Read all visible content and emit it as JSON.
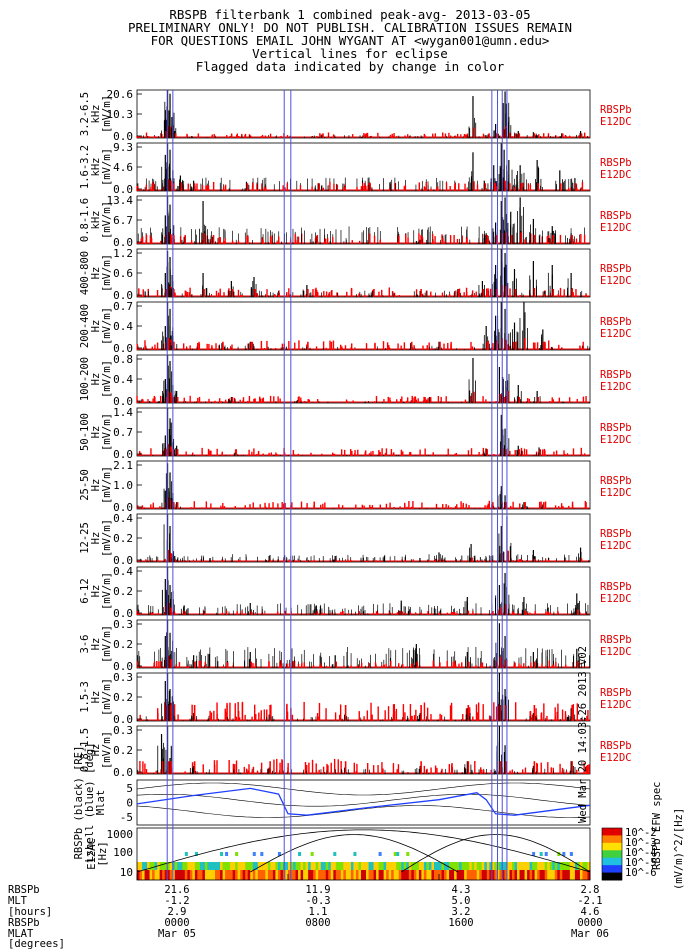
{
  "header": {
    "lines": [
      "RBSPB filterbank 1 combined peak-avg- 2013-03-05",
      "PRELIMINARY ONLY! DO NOT PUBLISH. CALIBRATION ISSUES REMAIN",
      "FOR QUESTIONS EMAIL JOHN WYGANT AT <wygan001@umn.edu>",
      "Vertical lines for eclipse",
      "Flagged data indicated by change in color"
    ]
  },
  "colors": {
    "peak": "#000000",
    "avg": "#ff0000",
    "eclipse": "#5050e0",
    "mlat": "#2040ff"
  },
  "chart_data": {
    "type": "line",
    "x_unit": "hours",
    "xlim": [
      0,
      24
    ],
    "eclipse_hours": [
      1.6,
      1.9,
      7.8,
      8.15,
      18.8,
      19.1,
      19.35,
      19.6
    ],
    "side_label": [
      "RBSPb",
      "E12DC"
    ],
    "panels": [
      {
        "band": "3.2-6.5",
        "unit": "kHz",
        "ylabel": "[mV/m]",
        "ticks": [
          "20.6",
          "10.3",
          "0.0"
        ],
        "ymax": 20.6,
        "peaks": [
          [
            1.5,
            12
          ],
          [
            1.62,
            20.5
          ],
          [
            1.75,
            19
          ],
          [
            1.85,
            9
          ],
          [
            2.0,
            3
          ],
          [
            9.8,
            1.2
          ],
          [
            12.1,
            0.6
          ],
          [
            17.8,
            18
          ],
          [
            18.6,
            1.5
          ],
          [
            19.0,
            6
          ],
          [
            19.4,
            15
          ],
          [
            19.5,
            20
          ],
          [
            19.7,
            9
          ],
          [
            20.2,
            3
          ],
          [
            21.0,
            2.5
          ],
          [
            22.5,
            2
          ],
          [
            23.5,
            3
          ]
        ],
        "base": 0.4,
        "red": 2.0
      },
      {
        "band": "1.6-3.2",
        "unit": "kHz",
        "ylabel": "[mV/m]",
        "ticks": [
          "9.3",
          "4.6",
          "0.0"
        ],
        "ymax": 9.3,
        "peaks": [
          [
            1.5,
            7
          ],
          [
            1.62,
            9.2
          ],
          [
            1.75,
            8
          ],
          [
            1.9,
            4
          ],
          [
            2.3,
            3
          ],
          [
            3.0,
            2
          ],
          [
            5.8,
            1.8
          ],
          [
            9.6,
            1.5
          ],
          [
            12.3,
            1.2
          ],
          [
            17.8,
            7.5
          ],
          [
            18.4,
            2
          ],
          [
            18.9,
            5
          ],
          [
            19.3,
            9.2
          ],
          [
            19.45,
            8
          ],
          [
            19.7,
            6
          ],
          [
            20.3,
            5
          ],
          [
            21.2,
            6
          ],
          [
            22.4,
            4
          ],
          [
            23.2,
            2.5
          ]
        ],
        "base": 0.8,
        "red": 1.5
      },
      {
        "band": "0.8-1.6",
        "unit": "kHz",
        "ylabel": "[mV/m]",
        "ticks": [
          "13.4",
          "6.7",
          "0.0"
        ],
        "ymax": 13.4,
        "peaks": [
          [
            1.5,
            8
          ],
          [
            1.62,
            13.3
          ],
          [
            1.75,
            11
          ],
          [
            1.9,
            3
          ],
          [
            2.5,
            2
          ],
          [
            3.5,
            12
          ],
          [
            4.0,
            2
          ],
          [
            9.5,
            1.5
          ],
          [
            15.0,
            1.2
          ],
          [
            18.5,
            3
          ],
          [
            19.0,
            6
          ],
          [
            19.3,
            12
          ],
          [
            19.5,
            13
          ],
          [
            19.8,
            9
          ],
          [
            20.3,
            13
          ],
          [
            21.0,
            7
          ],
          [
            22.0,
            5
          ],
          [
            23.0,
            3
          ]
        ],
        "base": 1.5,
        "red": 2.5
      },
      {
        "band": "400-800",
        "unit": "Hz",
        "ylabel": "[mV/m]",
        "ticks": [
          "1.2",
          "0.6",
          "0.0"
        ],
        "ymax": 1.2,
        "peaks": [
          [
            1.5,
            0.6
          ],
          [
            1.62,
            1.15
          ],
          [
            1.75,
            1.0
          ],
          [
            1.9,
            0.4
          ],
          [
            3.5,
            0.6
          ],
          [
            5.0,
            0.4
          ],
          [
            6.2,
            0.5
          ],
          [
            9.0,
            0.3
          ],
          [
            12.5,
            0.15
          ],
          [
            15.0,
            0.15
          ],
          [
            17.0,
            0.2
          ],
          [
            18.3,
            0.4
          ],
          [
            19.0,
            0.8
          ],
          [
            19.3,
            1.2
          ],
          [
            19.5,
            1.1
          ],
          [
            20.0,
            0.7
          ],
          [
            21.0,
            0.9
          ],
          [
            22.0,
            0.8
          ],
          [
            23.0,
            0.6
          ]
        ],
        "base": 0.05,
        "red": 0.2
      },
      {
        "band": "200-400",
        "unit": "Hz",
        "ylabel": "[mV/m]",
        "ticks": [
          "0.7",
          "0.4",
          "0.0"
        ],
        "ymax": 0.7,
        "peaks": [
          [
            1.5,
            0.35
          ],
          [
            1.62,
            0.7
          ],
          [
            1.75,
            0.6
          ],
          [
            1.9,
            0.2
          ],
          [
            4.5,
            0.1
          ],
          [
            6.0,
            0.12
          ],
          [
            9.0,
            0.05
          ],
          [
            14.5,
            0.1
          ],
          [
            16.0,
            0.12
          ],
          [
            18.5,
            0.35
          ],
          [
            19.0,
            0.5
          ],
          [
            19.3,
            0.7
          ],
          [
            19.5,
            0.6
          ],
          [
            20.0,
            0.4
          ],
          [
            20.5,
            0.7
          ],
          [
            21.5,
            0.3
          ]
        ],
        "base": 0.02,
        "red": 0.12
      },
      {
        "band": "100-200",
        "unit": "Hz",
        "ylabel": "[mV/m]",
        "ticks": [
          "0.8",
          "0.4",
          "0.0"
        ],
        "ymax": 0.8,
        "peaks": [
          [
            1.5,
            0.4
          ],
          [
            1.62,
            0.8
          ],
          [
            1.75,
            0.7
          ],
          [
            1.9,
            0.3
          ],
          [
            2.1,
            0.2
          ],
          [
            5.0,
            0.1
          ],
          [
            8.5,
            0.05
          ],
          [
            15.5,
            0.1
          ],
          [
            17.8,
            0.75
          ],
          [
            19.2,
            0.6
          ],
          [
            19.4,
            0.4
          ],
          [
            19.6,
            0.8
          ],
          [
            20.2,
            0.3
          ],
          [
            21.2,
            0.2
          ]
        ],
        "base": 0.01,
        "red": 0.1
      },
      {
        "band": "50-100",
        "unit": "Hz",
        "ylabel": "[mV/m]",
        "ticks": [
          "1.4",
          "0.7",
          "0.0"
        ],
        "ymax": 1.4,
        "peaks": [
          [
            1.5,
            0.6
          ],
          [
            1.62,
            1.4
          ],
          [
            1.75,
            1.1
          ],
          [
            1.9,
            0.4
          ],
          [
            2.1,
            0.3
          ],
          [
            5.2,
            0.1
          ],
          [
            18.5,
            0.2
          ],
          [
            19.3,
            1.2
          ],
          [
            19.5,
            0.8
          ],
          [
            20.2,
            0.3
          ],
          [
            21.3,
            0.25
          ]
        ],
        "base": 0.01,
        "red": 0.2
      },
      {
        "band": "25-50",
        "unit": "Hz",
        "ylabel": "[mV/m]",
        "ticks": [
          "2.1",
          "1.0",
          "0.0"
        ],
        "ymax": 2.1,
        "peaks": [
          [
            1.5,
            0.8
          ],
          [
            1.62,
            2.0
          ],
          [
            1.75,
            1.6
          ],
          [
            1.9,
            0.7
          ],
          [
            2.1,
            0.3
          ],
          [
            18.8,
            0.2
          ],
          [
            19.3,
            1.0
          ],
          [
            19.5,
            0.6
          ],
          [
            20.5,
            0.3
          ],
          [
            21.5,
            0.2
          ]
        ],
        "base": 0.01,
        "red": 0.3
      },
      {
        "band": "12-25",
        "unit": "Hz",
        "ylabel": "[mV/m]",
        "ticks": [
          "0.4",
          "0.2",
          "0.0"
        ],
        "ymax": 0.4,
        "peaks": [
          [
            1.62,
            0.4
          ],
          [
            1.75,
            0.3
          ],
          [
            2.0,
            0.05
          ],
          [
            7.0,
            0.05
          ],
          [
            10.5,
            0.05
          ],
          [
            16.0,
            0.08
          ],
          [
            17.7,
            0.15
          ],
          [
            19.3,
            0.3
          ],
          [
            19.6,
            0.38
          ],
          [
            21.0,
            0.1
          ],
          [
            23.5,
            0.12
          ]
        ],
        "base": 0.02,
        "red": 0.02
      },
      {
        "band": "6-12",
        "unit": "Hz",
        "ylabel": "[mV/m]",
        "ticks": [
          "0.4",
          "0.2",
          "0.0"
        ],
        "ymax": 0.4,
        "peaks": [
          [
            1.5,
            0.3
          ],
          [
            1.62,
            0.4
          ],
          [
            1.75,
            0.25
          ],
          [
            2.5,
            0.08
          ],
          [
            6.0,
            0.1
          ],
          [
            9.5,
            0.08
          ],
          [
            14.0,
            0.12
          ],
          [
            17.5,
            0.15
          ],
          [
            19.2,
            0.25
          ],
          [
            19.5,
            0.35
          ],
          [
            20.5,
            0.15
          ],
          [
            23.3,
            0.18
          ]
        ],
        "base": 0.03,
        "red": 0.03
      },
      {
        "band": "3-6",
        "unit": "Hz",
        "ylabel": "[mV/m]",
        "ticks": [
          "0.3",
          "0.2",
          "0.0"
        ],
        "ymax": 0.3,
        "peaks": [
          [
            1.5,
            0.2
          ],
          [
            1.62,
            0.3
          ],
          [
            1.75,
            0.22
          ],
          [
            3.0,
            0.08
          ],
          [
            6.0,
            0.1
          ],
          [
            10.5,
            0.08
          ],
          [
            14.8,
            0.15
          ],
          [
            17.5,
            0.1
          ],
          [
            19.2,
            0.28
          ],
          [
            19.5,
            0.2
          ],
          [
            21.0,
            0.1
          ],
          [
            23.3,
            0.12
          ]
        ],
        "base": 0.04,
        "red": 0.04
      },
      {
        "band": "1.5-3",
        "unit": "Hz",
        "ylabel": "[mV/m]",
        "ticks": [
          "0.3",
          "0.2",
          "0.0"
        ],
        "ymax": 0.3,
        "peaks": [
          [
            1.5,
            0.25
          ],
          [
            1.62,
            0.3
          ],
          [
            1.75,
            0.2
          ],
          [
            3.0,
            0.05
          ],
          [
            7.0,
            0.04
          ],
          [
            11.0,
            0.04
          ],
          [
            15.0,
            0.05
          ],
          [
            17.5,
            0.08
          ],
          [
            19.2,
            0.3
          ],
          [
            19.5,
            0.2
          ],
          [
            21.0,
            0.05
          ],
          [
            23.0,
            0.08
          ]
        ],
        "base": 0.01,
        "red": 0.1
      },
      {
        "band": "0.8-1.5",
        "unit": "Hz",
        "ylabel": "[mV/m]",
        "ticks": [
          "0.3",
          "0.2",
          "0.0"
        ],
        "ymax": 0.3,
        "peaks": [
          [
            1.3,
            0.25
          ],
          [
            1.62,
            0.3
          ],
          [
            1.75,
            0.1
          ],
          [
            3.0,
            0.05
          ],
          [
            7.0,
            0.04
          ],
          [
            11.0,
            0.04
          ],
          [
            15.0,
            0.05
          ],
          [
            17.5,
            0.08
          ],
          [
            19.2,
            0.3
          ],
          [
            19.5,
            0.18
          ],
          [
            21.0,
            0.05
          ],
          [
            23.0,
            0.08
          ]
        ],
        "base": 0.01,
        "red": 0.08
      }
    ],
    "mlat_panel": {
      "ylabel": [
        "RBSPb",
        "(black)",
        "[RE]",
        "Lshell",
        "(blue)",
        "[deg]",
        "Mlat"
      ],
      "ticks": [
        "5",
        "0",
        "-5"
      ],
      "ylim": [
        -8,
        8
      ],
      "mlat_points": [
        [
          0,
          -0.5
        ],
        [
          3,
          2.5
        ],
        [
          6,
          5
        ],
        [
          7.5,
          3
        ],
        [
          8,
          -4
        ],
        [
          9,
          -4.5
        ],
        [
          12,
          -2
        ],
        [
          16,
          1
        ],
        [
          18,
          3.5
        ],
        [
          18.5,
          1
        ],
        [
          19,
          -4
        ],
        [
          20,
          -4.5
        ],
        [
          24,
          -1
        ]
      ],
      "stamp": "Wed Mar 20 14:03:26 2013 v02"
    },
    "spec_panel": {
      "ylabel": [
        "E12AC",
        "[Hz]"
      ],
      "ticks": [
        "1000",
        "100",
        "10"
      ],
      "colorbar_ticks": [
        "10^-2",
        "10^-3",
        "10^-4",
        "10^-5",
        "10^-6"
      ],
      "colorbar_title": "RBSPb EFW spec",
      "colorbar_unit": "(mV/m)^2/[Hz]"
    },
    "footer": {
      "labels": [
        "RBSPb",
        "MLT",
        "[hours]",
        "RBSPb",
        "MLAT",
        "[degrees]"
      ],
      "columns": [
        {
          "hour": 0,
          "vals": [
            "21.6",
            "-1.2",
            "2.9",
            "0000",
            "Mar 05"
          ]
        },
        {
          "hour": 8,
          "vals": [
            "11.9",
            "-0.3",
            "1.1",
            "0800",
            ""
          ]
        },
        {
          "hour": 16,
          "vals": [
            "4.3",
            "5.0",
            "3.2",
            "1600",
            ""
          ]
        },
        {
          "hour": 24,
          "vals": [
            "2.8",
            "-2.1",
            "4.6",
            "0000",
            "Mar 06"
          ]
        }
      ]
    }
  }
}
